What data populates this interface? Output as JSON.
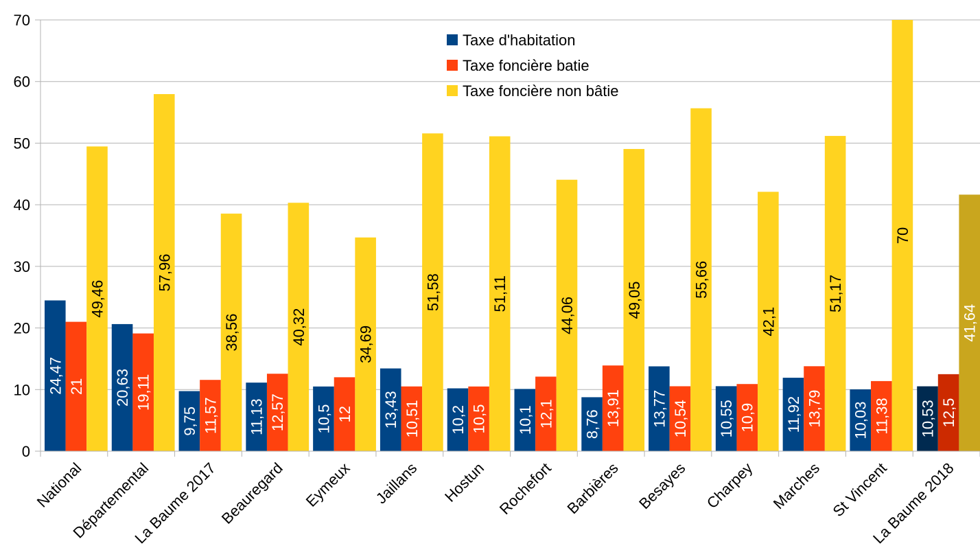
{
  "chart_data": {
    "type": "bar",
    "title": "",
    "xlabel": "",
    "ylabel": "",
    "ylim": [
      0,
      70
    ],
    "yticks": [
      "0",
      "10",
      "20",
      "30",
      "40",
      "50",
      "60",
      "70"
    ],
    "grid": true,
    "legend_position": "top-center",
    "categories": [
      "National",
      "Départemental",
      "La Baume 2017",
      "Beauregard",
      "Eymeux",
      "Jaillans",
      "Hostun",
      "Rochefort",
      "Barbières",
      "Besayes",
      "Charpey",
      "Marches",
      "St Vincent",
      "La Baume 2018"
    ],
    "series": [
      {
        "name": "Taxe d'habitation",
        "color": "#004586",
        "highlight_color": "#002a50",
        "label_color": "#ffffff",
        "values": [
          24.47,
          20.63,
          9.75,
          11.13,
          10.5,
          13.43,
          10.2,
          10.1,
          8.76,
          13.77,
          10.55,
          11.92,
          10.03,
          10.53
        ],
        "labels": [
          "24,47",
          "20,63",
          "9,75",
          "11,13",
          "10,5",
          "13,43",
          "10,2",
          "10,1",
          "8,76",
          "13,77",
          "10,55",
          "11,92",
          "10,03",
          "10,53"
        ]
      },
      {
        "name": "Taxe foncière batie",
        "color": "#ff420e",
        "highlight_color": "#cc2a00",
        "label_color": "#ffffff",
        "values": [
          21,
          19.11,
          11.57,
          12.57,
          12,
          10.51,
          10.5,
          12.1,
          13.91,
          10.54,
          10.9,
          13.79,
          11.38,
          12.5
        ],
        "labels": [
          "21",
          "19,11",
          "11,57",
          "12,57",
          "12",
          "10,51",
          "10,5",
          "12,1",
          "13,91",
          "10,54",
          "10,9",
          "13,79",
          "11,38",
          "12,5"
        ]
      },
      {
        "name": "Taxe foncière non bâtie",
        "color": "#ffd320",
        "highlight_color": "#c9a61e",
        "label_color": "#000000",
        "highlight_label_color": "#ffffff",
        "values": [
          49.46,
          57.96,
          38.56,
          40.32,
          34.69,
          51.58,
          51.11,
          44.06,
          49.05,
          55.66,
          42.1,
          51.17,
          70,
          41.64
        ],
        "labels": [
          "49,46",
          "57,96",
          "38,56",
          "40,32",
          "34,69",
          "51,58",
          "51,11",
          "44,06",
          "49,05",
          "55,66",
          "42,1",
          "51,17",
          "70",
          "41,64"
        ]
      }
    ],
    "highlight_category": "La Baume 2018"
  }
}
